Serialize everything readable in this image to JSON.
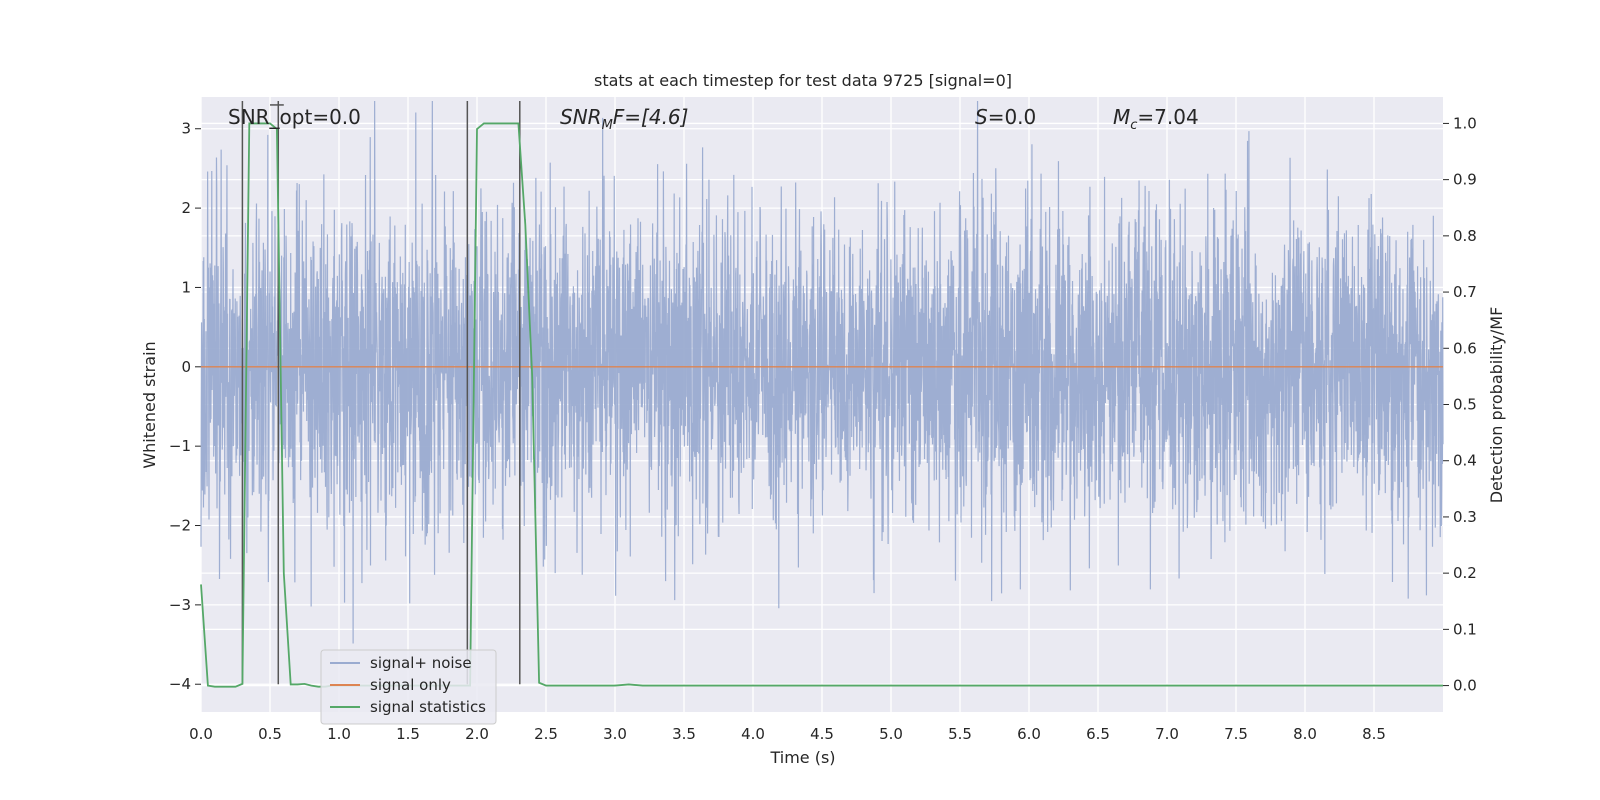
{
  "chart_data": {
    "type": "line",
    "title": "stats at each timestep for test data 9725 [signal=0]",
    "xlabel": "Time (s)",
    "ylabel": "Whitened strain",
    "ylabel_right": "Detection probability/MF",
    "xlim": [
      0,
      9.0
    ],
    "ylim": [
      -4.35,
      3.4
    ],
    "ylim_right": [
      -0.047,
      1.047
    ],
    "x_ticks": [
      "0.0",
      "0.5",
      "1.0",
      "1.5",
      "2.0",
      "2.5",
      "3.0",
      "3.5",
      "4.0",
      "4.5",
      "5.0",
      "5.5",
      "6.0",
      "6.5",
      "7.0",
      "7.5",
      "8.0",
      "8.5"
    ],
    "y_ticks": [
      "−4",
      "−3",
      "−2",
      "−1",
      "0",
      "1",
      "2",
      "3"
    ],
    "y_ticks_right": [
      "0.0",
      "0.1",
      "0.2",
      "0.3",
      "0.4",
      "0.5",
      "0.6",
      "0.7",
      "0.8",
      "0.9",
      "1.0"
    ],
    "grid": true,
    "legend_position": "lower-left",
    "annotations": {
      "snr_opt": "SNR_opt=0.0",
      "snr_mf_base": "SNR",
      "snr_mf_sub": "M",
      "snr_mf_rest": "F=[4.6]",
      "s_base": "S",
      "s_rest": "=0.0",
      "mc_base": "M",
      "mc_sub": "c",
      "mc_rest": "=7.04"
    },
    "series": [
      {
        "name": "signal+ noise",
        "color": "#9aabd0",
        "description_values": "noise, amplitude approx within [-3.6, 3.4]"
      },
      {
        "name": "signal only",
        "color": "#dd8452",
        "x": [
          0,
          9.0
        ],
        "y": [
          0,
          0
        ]
      },
      {
        "name": "signal statistics",
        "color": "#55a868",
        "axis": "right",
        "x": [
          0.0,
          0.05,
          0.1,
          0.15,
          0.2,
          0.25,
          0.3,
          0.35,
          0.4,
          0.45,
          0.5,
          0.55,
          0.6,
          0.65,
          0.7,
          0.75,
          0.8,
          0.85,
          0.9,
          0.95,
          1.0,
          1.5,
          1.85,
          1.9,
          1.95,
          2.0,
          2.05,
          2.1,
          2.15,
          2.2,
          2.25,
          2.3,
          2.35,
          2.4,
          2.45,
          2.5,
          2.6,
          3.0,
          3.1,
          3.2,
          3.5,
          9.0
        ],
        "y": [
          0.18,
          0.0,
          -0.002,
          -0.002,
          -0.002,
          -0.002,
          0.003,
          1.0,
          1.0,
          1.0,
          1.0,
          0.99,
          0.2,
          0.002,
          0.002,
          0.003,
          0.0,
          -0.002,
          -0.002,
          0.0,
          0.0,
          0.0,
          0.0,
          0.0,
          0.0,
          0.99,
          1.0,
          1.0,
          1.0,
          1.0,
          1.0,
          1.0,
          0.82,
          0.55,
          0.005,
          0.0,
          0.0,
          0.0,
          0.002,
          0.0,
          0.0,
          0.0
        ]
      }
    ],
    "vertical_lines_x": [
      0.3,
      0.56,
      1.93,
      2.31
    ]
  }
}
